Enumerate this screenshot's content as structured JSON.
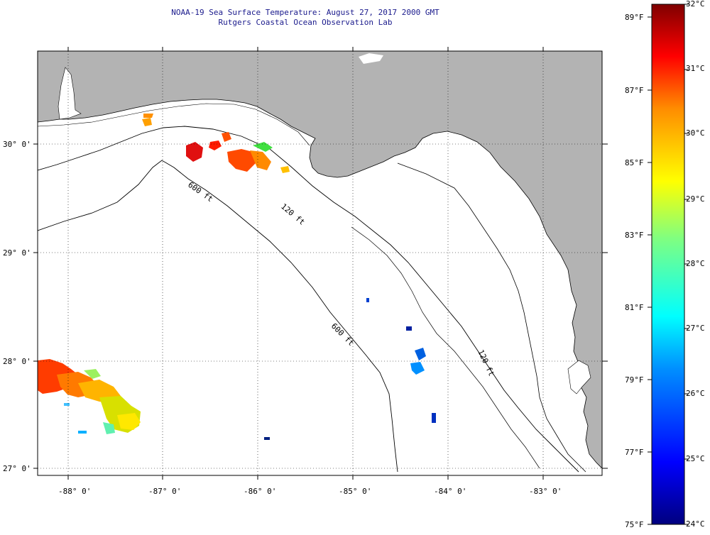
{
  "header": {
    "title": "NOAA-19 Sea Surface Temperature:  August 27, 2017 2000 GMT",
    "subtitle": "Rutgers Coastal Ocean Observation Lab"
  },
  "map": {
    "lat_labels": [
      "30° 0'",
      "29° 0'",
      "28° 0'",
      "27° 0'"
    ],
    "lon_labels": [
      "-88° 0'",
      "-87° 0'",
      "-86° 0'",
      "-85° 0'",
      "-84° 0'",
      "-83° 0'"
    ],
    "isobath_labels": [
      "600 ft",
      "120 ft",
      "600 ft",
      "120 ft"
    ]
  },
  "colorbar": {
    "celsius": [
      "32°C",
      "31°C",
      "30°C",
      "29°C",
      "28°C",
      "27°C",
      "26°C",
      "25°C",
      "24°C"
    ],
    "fahrenheit": [
      "89°F",
      "87°F",
      "85°F",
      "83°F",
      "81°F",
      "79°F",
      "77°F",
      "75°F"
    ]
  },
  "colors": {
    "land": "#b3b3b3",
    "scale": [
      "#000080",
      "#0000ff",
      "#0080ff",
      "#00ffff",
      "#80ff80",
      "#ffff00",
      "#ff8000",
      "#ff0000",
      "#800000"
    ]
  }
}
